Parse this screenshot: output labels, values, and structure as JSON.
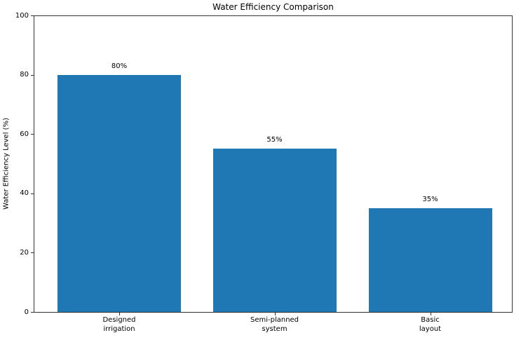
{
  "chart_data": {
    "type": "bar",
    "title": "Water Efficiency Comparison",
    "xlabel": "",
    "ylabel": "Water Efficiency Level (%)",
    "categories": [
      "Designed\nirrigation",
      "Semi-planned\nsystem",
      "Basic\nlayout"
    ],
    "values": [
      80,
      55,
      35
    ],
    "bar_labels": [
      "80%",
      "55%",
      "35%"
    ],
    "ylim": [
      0,
      100
    ],
    "yticks": [
      0,
      20,
      40,
      60,
      80,
      100
    ],
    "bar_color": "#1f77b4",
    "grid": false,
    "legend_position": "none",
    "background_color": "#ffffff"
  }
}
